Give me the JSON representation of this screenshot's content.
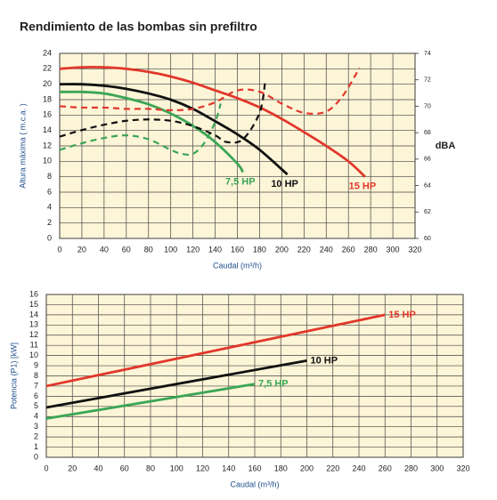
{
  "chart_data": [
    {
      "type": "line",
      "title": "Rendimiento de las bombas sin prefiltro",
      "x_label": "Caudal (m³/h)",
      "y_label": "Altura máxima ( m.c.a. )",
      "y2_label": "dBA",
      "xlim": [
        0,
        320
      ],
      "xticks": [
        0,
        20,
        40,
        60,
        80,
        100,
        120,
        140,
        160,
        180,
        200,
        220,
        240,
        260,
        280,
        300,
        320
      ],
      "ylim": [
        0,
        24
      ],
      "yticks": [
        0,
        2,
        4,
        6,
        8,
        10,
        12,
        14,
        16,
        18,
        20,
        22,
        24
      ],
      "y2lim": [
        60,
        74
      ],
      "y2ticks": [
        60,
        62,
        64,
        66,
        68,
        70,
        72,
        74
      ],
      "grid": true,
      "background": "#fdf5d7",
      "series": [
        {
          "name": "7,5 HP",
          "color": "#3aa655",
          "x": [
            0,
            20,
            40,
            60,
            80,
            100,
            120,
            140,
            160,
            165
          ],
          "values": [
            19,
            19,
            18.8,
            18.2,
            17.4,
            16.2,
            14.6,
            12.5,
            9.7,
            8.6
          ]
        },
        {
          "name": "10 HP",
          "color": "#111111",
          "x": [
            0,
            20,
            40,
            60,
            80,
            100,
            120,
            140,
            160,
            180,
            205
          ],
          "values": [
            20,
            20,
            19.8,
            19.4,
            18.8,
            18,
            16.8,
            15.2,
            13.5,
            11.5,
            8.3
          ]
        },
        {
          "name": "15 HP",
          "color": "#e2372b",
          "x": [
            0,
            20,
            40,
            60,
            80,
            100,
            120,
            140,
            160,
            180,
            200,
            220,
            240,
            260,
            275
          ],
          "values": [
            22,
            22.2,
            22.2,
            22,
            21.6,
            21,
            20.2,
            19.2,
            18.2,
            17,
            15.5,
            13.8,
            12,
            10,
            8
          ]
        },
        {
          "color": "#3aa655",
          "dashed": true,
          "axis": "y2",
          "x": [
            0,
            20,
            40,
            60,
            80,
            100,
            110,
            120,
            130,
            140,
            145
          ],
          "values": [
            66.7,
            67.2,
            67.6,
            67.8,
            67.5,
            66.7,
            66.4,
            66.4,
            67.2,
            68.8,
            70.2
          ]
        },
        {
          "color": "#111111",
          "dashed": true,
          "axis": "y2",
          "x": [
            0,
            20,
            40,
            60,
            80,
            100,
            120,
            140,
            150,
            165,
            180,
            185
          ],
          "values": [
            67.7,
            68.2,
            68.6,
            68.9,
            69,
            68.9,
            68.5,
            67.8,
            67.3,
            67.5,
            69.5,
            71.8
          ]
        },
        {
          "color": "#e2372b",
          "dashed": true,
          "axis": "y2",
          "x": [
            0,
            20,
            40,
            60,
            80,
            100,
            120,
            140,
            160,
            180,
            200,
            220,
            240,
            255,
            270
          ],
          "values": [
            70,
            69.9,
            69.9,
            69.8,
            69.8,
            69.7,
            69.8,
            70.3,
            71.2,
            71.1,
            70.2,
            69.5,
            69.6,
            70.8,
            72.9
          ]
        }
      ]
    },
    {
      "type": "line",
      "x_label": "Caudal (m³/h)",
      "y_label": "Potencia (P1) [kW]",
      "xlim": [
        0,
        320
      ],
      "xticks": [
        0,
        20,
        40,
        60,
        80,
        100,
        120,
        140,
        160,
        180,
        200,
        220,
        240,
        260,
        280,
        300,
        320
      ],
      "ylim": [
        0,
        16
      ],
      "yticks": [
        0,
        1,
        2,
        3,
        4,
        5,
        6,
        7,
        8,
        9,
        10,
        11,
        12,
        13,
        14,
        15,
        16
      ],
      "grid": true,
      "background": "#fdf5d7",
      "series": [
        {
          "name": "15 HP",
          "color": "#e2372b",
          "x": [
            0,
            260
          ],
          "values": [
            7,
            14
          ]
        },
        {
          "name": "10 HP",
          "color": "#111111",
          "x": [
            0,
            200
          ],
          "values": [
            4.9,
            9.5
          ]
        },
        {
          "name": "7,5 HP",
          "color": "#3aa655",
          "x": [
            0,
            160
          ],
          "values": [
            3.8,
            7.2
          ]
        }
      ]
    }
  ]
}
